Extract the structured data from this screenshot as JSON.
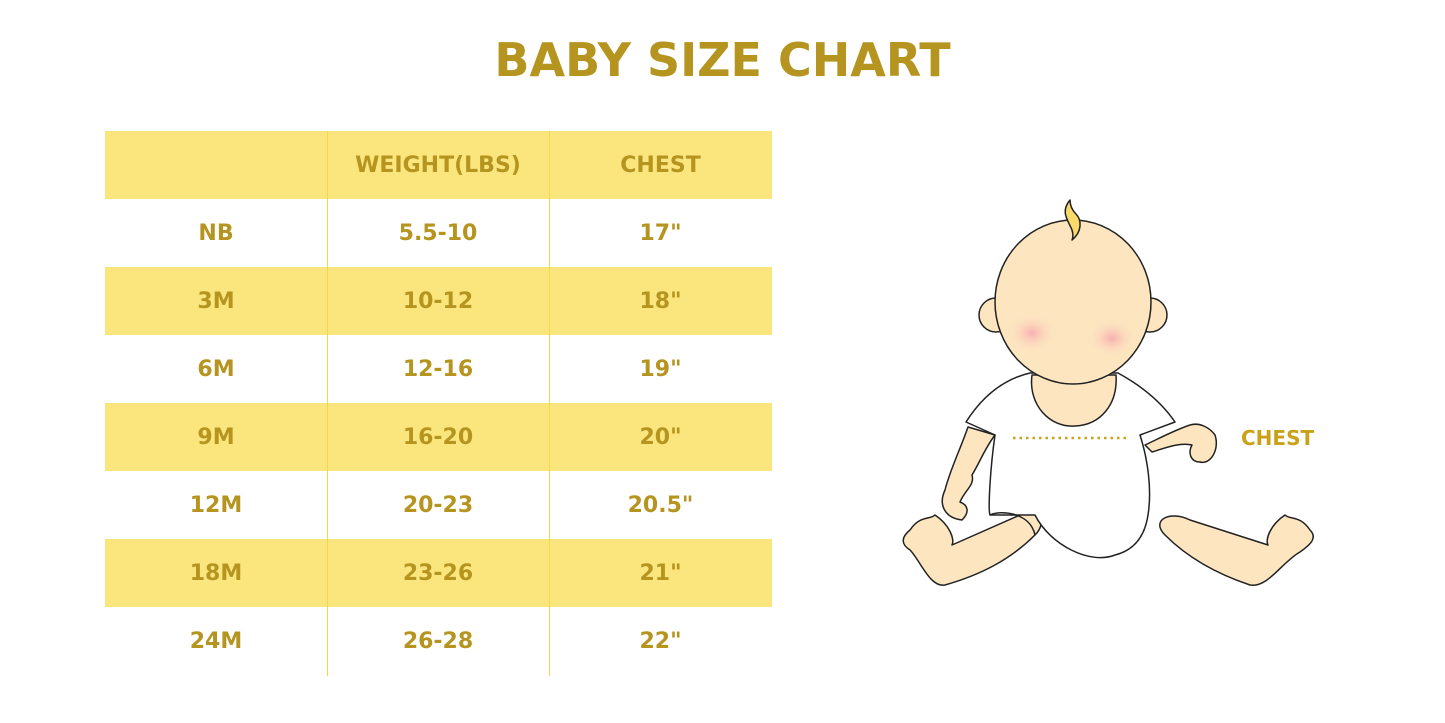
{
  "title": "BABY SIZE CHART",
  "table": {
    "headers": [
      "",
      "WEIGHT(LBS)",
      "CHEST"
    ],
    "rows": [
      [
        "NB",
        "5.5-10",
        "17\""
      ],
      [
        "3M",
        "10-12",
        "18\""
      ],
      [
        "6M",
        "12-16",
        "19\""
      ],
      [
        "9M",
        "16-20",
        "20\""
      ],
      [
        "12M",
        "20-23",
        "20.5\""
      ],
      [
        "18M",
        "23-26",
        "21\""
      ],
      [
        "24M",
        "26-28",
        "22\""
      ]
    ]
  },
  "illustration": {
    "chest_label": "CHEST"
  },
  "colors": {
    "text": "#b5951f",
    "band": "#fbe57d",
    "skin": "#fde5c0",
    "divider": "#f5d84a"
  }
}
